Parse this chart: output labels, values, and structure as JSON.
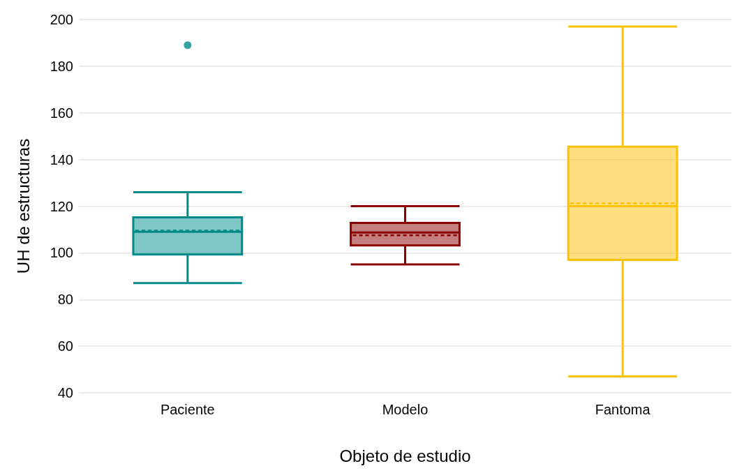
{
  "chart_data": {
    "type": "box",
    "xlabel": "Objeto de estudio",
    "ylabel": "UH de estructuras",
    "categories": [
      "Paciente",
      "Modelo",
      "Fantoma"
    ],
    "colors": [
      "#008b8b",
      "#8b0000",
      "#ffc000"
    ],
    "boxes": [
      {
        "low": 87,
        "q1": 99.3,
        "median": 109,
        "q3": 115.2,
        "high": 126,
        "mean": 109.5,
        "outliers": [
          189
        ]
      },
      {
        "low": 95,
        "q1": 103.2,
        "median": 108.7,
        "q3": 112.8,
        "high": 120,
        "mean": 107.5
      },
      {
        "low": 47,
        "q1": 97,
        "median": 120,
        "q3": 145.5,
        "high": 197,
        "mean": 121.2
      }
    ],
    "ylim": [
      40,
      200
    ],
    "yticks": [
      40,
      60,
      80,
      100,
      120,
      140,
      160,
      180,
      200
    ],
    "grid": "y"
  }
}
